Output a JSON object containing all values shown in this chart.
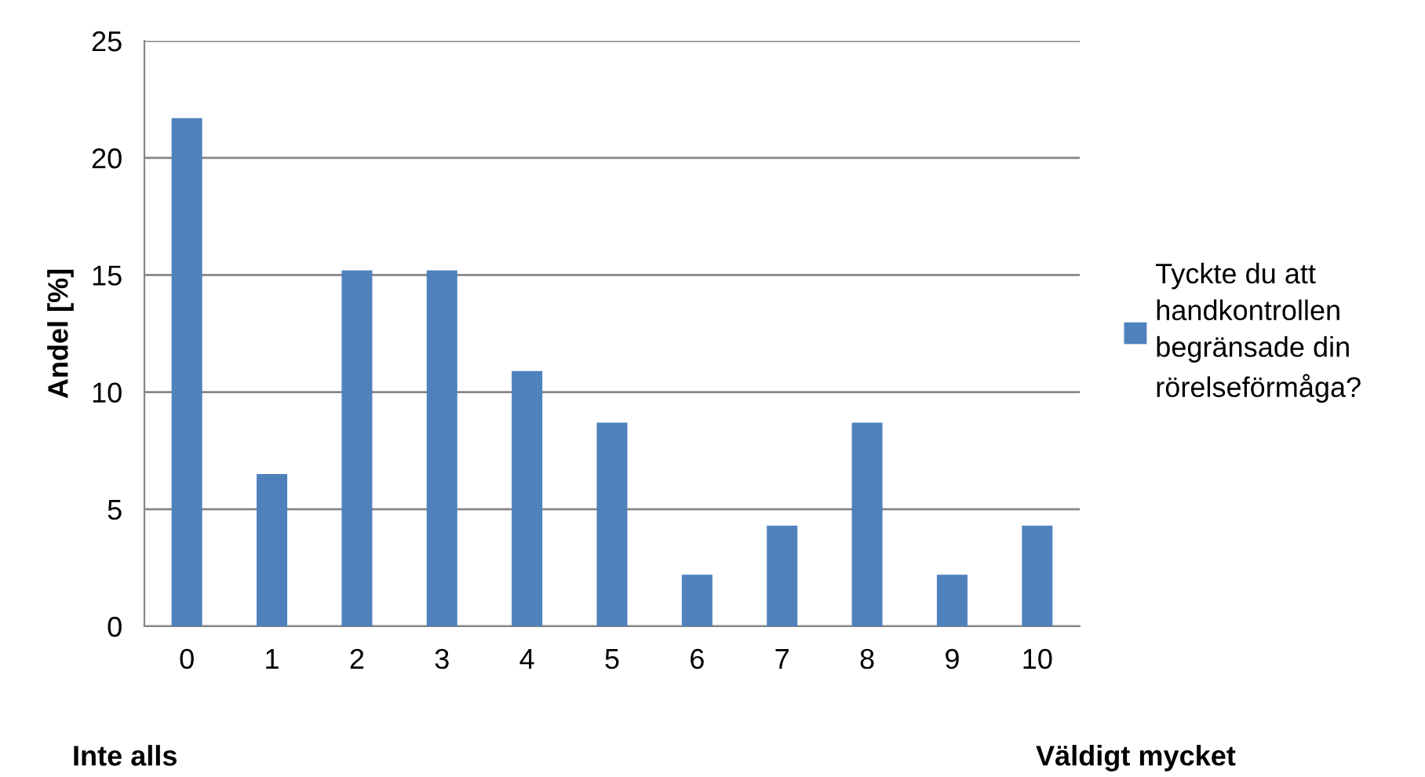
{
  "chart_data": {
    "type": "bar",
    "ylabel": "Andel [%]",
    "categories": [
      "0",
      "1",
      "2",
      "3",
      "4",
      "5",
      "6",
      "7",
      "8",
      "9",
      "10"
    ],
    "series": [
      {
        "name": "Tyckte du att handkontrollen begränsade din rörelseförmåga?",
        "color": "#4f81bd",
        "values": [
          21.7,
          6.5,
          15.2,
          15.2,
          10.9,
          8.7,
          2.2,
          4.3,
          8.7,
          2.2,
          4.3
        ]
      }
    ],
    "ylim": [
      0,
      25
    ],
    "yticks": [
      0,
      5,
      10,
      15,
      20,
      25
    ],
    "grid": "y",
    "legend": "right",
    "annotations": [
      "Inte alls",
      "Väldigt mycket"
    ]
  }
}
